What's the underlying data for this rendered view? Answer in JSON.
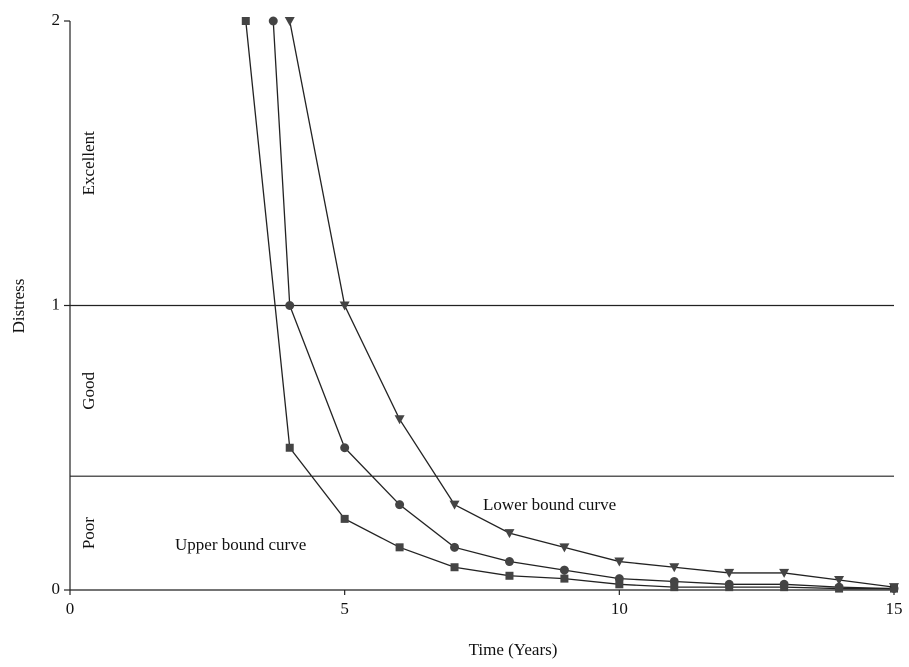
{
  "chart_data": {
    "type": "line",
    "x_label": "Time (Years)",
    "y_label": "Distress",
    "xlim": [
      0,
      15
    ],
    "xticks": [
      0,
      5,
      10,
      15
    ],
    "ylim": [
      0,
      2
    ],
    "yticks": [
      0,
      1,
      2
    ],
    "color": "#222222",
    "zones": [
      {
        "label": "Excellent",
        "range": [
          1,
          2
        ]
      },
      {
        "label": "Good",
        "range": [
          0.4,
          1
        ]
      },
      {
        "label": "Poor",
        "range": [
          0,
          0.4
        ]
      }
    ],
    "series": [
      {
        "marker": "square",
        "x": [
          3.2,
          4,
          5,
          6,
          7,
          8,
          9,
          10,
          11,
          12,
          13,
          14,
          15
        ],
        "values": [
          2,
          0.5,
          0.25,
          0.15,
          0.08,
          0.05,
          0.04,
          0.02,
          0.01,
          0.01,
          0.01,
          0.005,
          0.005
        ]
      },
      {
        "marker": "circle",
        "x": [
          3.7,
          4,
          5,
          6,
          7,
          8,
          9,
          10,
          11,
          12,
          13,
          14,
          15
        ],
        "values": [
          2,
          1,
          0.5,
          0.3,
          0.15,
          0.1,
          0.07,
          0.04,
          0.03,
          0.02,
          0.02,
          0.01,
          0.005
        ]
      },
      {
        "marker": "triangle",
        "x": [
          4,
          5,
          6,
          7,
          8,
          9,
          10,
          11,
          12,
          13,
          14,
          15
        ],
        "values": [
          2,
          1,
          0.6,
          0.3,
          0.2,
          0.15,
          0.1,
          0.08,
          0.06,
          0.06,
          0.035,
          0.01
        ]
      }
    ],
    "annotations": [
      "Upper bound curve",
      "Lower bound curve"
    ]
  }
}
